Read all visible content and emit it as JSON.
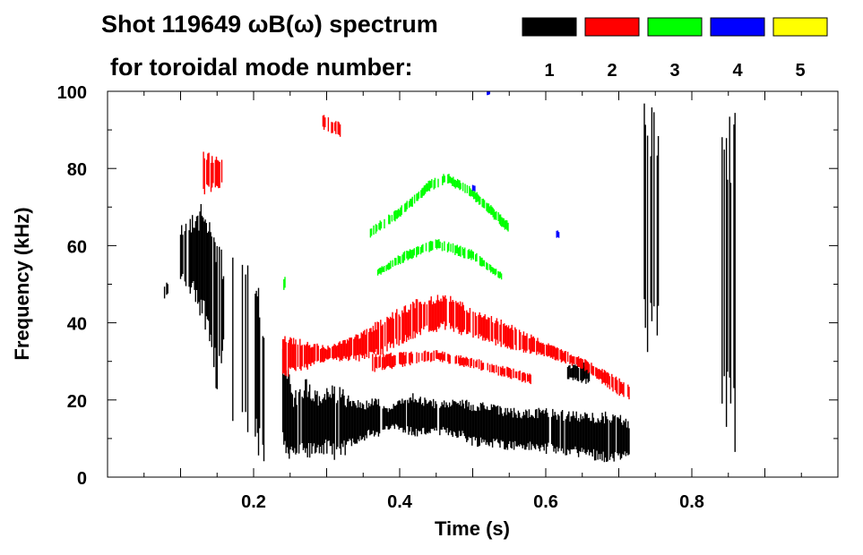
{
  "chart_data": {
    "type": "heatmap",
    "title": "Shot 119649 ωB(ω) spectrum",
    "subtitle": "for toroidal mode number:",
    "xlabel": "Time (s)",
    "ylabel": "Frequency (kHz)",
    "xlim": [
      0,
      1.0
    ],
    "ylim": [
      0,
      100
    ],
    "xticks": [
      0.2,
      0.4,
      0.6,
      0.8
    ],
    "xtick_labels": [
      "0.2",
      "0.4",
      "0.6",
      "0.8"
    ],
    "yticks": [
      0,
      20,
      40,
      60,
      80,
      100
    ],
    "ytick_labels": [
      "0",
      "20",
      "40",
      "60",
      "80",
      "100"
    ],
    "legend": [
      {
        "mode": "1",
        "color": "#000000"
      },
      {
        "mode": "2",
        "color": "#ff0000"
      },
      {
        "mode": "3",
        "color": "#00ff00"
      },
      {
        "mode": "4",
        "color": "#0000ff"
      },
      {
        "mode": "5",
        "color": "#ffff00"
      }
    ],
    "features": [
      {
        "mode": 1,
        "density": 0.9,
        "points": [
          [
            0.078,
            46,
            50
          ],
          [
            0.083,
            47,
            51
          ]
        ]
      },
      {
        "mode": 1,
        "density": 0.8,
        "points": [
          [
            0.1,
            50,
            66
          ],
          [
            0.12,
            45,
            70
          ],
          [
            0.14,
            35,
            72
          ],
          [
            0.15,
            20,
            65
          ],
          [
            0.16,
            30,
            55
          ]
        ]
      },
      {
        "mode": 1,
        "density": 0.35,
        "points": [
          [
            0.17,
            15,
            60
          ],
          [
            0.2,
            5,
            55
          ],
          [
            0.215,
            3,
            45
          ]
        ]
      },
      {
        "mode": 1,
        "density": 0.95,
        "points": [
          [
            0.24,
            4,
            35
          ],
          [
            0.255,
            5,
            22
          ],
          [
            0.27,
            3,
            26
          ],
          [
            0.29,
            6,
            22
          ],
          [
            0.3,
            5,
            24
          ],
          [
            0.32,
            4,
            24
          ],
          [
            0.335,
            8,
            20
          ],
          [
            0.36,
            10,
            20
          ],
          [
            0.37,
            9,
            22
          ],
          [
            0.38,
            12,
            18
          ],
          [
            0.4,
            12,
            20
          ],
          [
            0.42,
            10,
            22
          ],
          [
            0.45,
            11,
            20
          ],
          [
            0.48,
            10,
            21
          ],
          [
            0.5,
            8,
            20
          ],
          [
            0.55,
            7,
            18
          ],
          [
            0.6,
            6,
            18
          ],
          [
            0.65,
            5,
            17
          ],
          [
            0.7,
            3,
            17
          ],
          [
            0.715,
            5,
            15
          ]
        ]
      },
      {
        "mode": 1,
        "density": 0.9,
        "points": [
          [
            0.63,
            25,
            29
          ],
          [
            0.66,
            24,
            30
          ]
        ]
      },
      {
        "mode": 1,
        "density": 0.5,
        "points": [
          [
            0.735,
            30,
            100
          ],
          [
            0.76,
            30,
            90
          ]
        ]
      },
      {
        "mode": 1,
        "density": 0.6,
        "points": [
          [
            0.84,
            10,
            100
          ],
          [
            0.86,
            5,
            95
          ]
        ]
      },
      {
        "mode": 2,
        "density": 0.6,
        "points": [
          [
            0.13,
            73,
            85
          ],
          [
            0.16,
            75,
            82
          ]
        ]
      },
      {
        "mode": 2,
        "density": 0.8,
        "points": [
          [
            0.295,
            90,
            94
          ],
          [
            0.32,
            88,
            92
          ]
        ]
      },
      {
        "mode": 2,
        "density": 0.85,
        "points": [
          [
            0.24,
            25,
            37
          ],
          [
            0.3,
            30,
            34
          ],
          [
            0.35,
            30,
            38
          ],
          [
            0.38,
            32,
            42
          ],
          [
            0.42,
            36,
            46
          ],
          [
            0.46,
            38,
            48
          ],
          [
            0.5,
            36,
            44
          ],
          [
            0.55,
            33,
            40
          ],
          [
            0.6,
            31,
            35
          ],
          [
            0.65,
            28,
            31
          ],
          [
            0.7,
            21,
            26
          ],
          [
            0.715,
            20,
            24
          ]
        ]
      },
      {
        "mode": 2,
        "density": 0.7,
        "points": [
          [
            0.36,
            27,
            32
          ],
          [
            0.45,
            30,
            33
          ],
          [
            0.5,
            28,
            31
          ],
          [
            0.58,
            24,
            27
          ]
        ]
      },
      {
        "mode": 3,
        "density": 0.75,
        "points": [
          [
            0.36,
            62,
            65
          ],
          [
            0.4,
            67,
            70
          ],
          [
            0.44,
            74,
            77
          ],
          [
            0.465,
            76,
            79
          ],
          [
            0.5,
            72,
            75
          ],
          [
            0.55,
            63,
            66
          ]
        ]
      },
      {
        "mode": 3,
        "density": 0.75,
        "points": [
          [
            0.37,
            52,
            54
          ],
          [
            0.41,
            56,
            59
          ],
          [
            0.45,
            59,
            62
          ],
          [
            0.5,
            56,
            59
          ],
          [
            0.54,
            51,
            53
          ]
        ]
      },
      {
        "mode": 3,
        "density": 0.6,
        "points": [
          [
            0.24,
            48,
            52
          ],
          [
            0.245,
            49,
            52
          ]
        ]
      },
      {
        "mode": 4,
        "density": 0.9,
        "points": [
          [
            0.5,
            74,
            76
          ],
          [
            0.503,
            74,
            76
          ]
        ]
      },
      {
        "mode": 4,
        "density": 0.9,
        "points": [
          [
            0.615,
            62,
            64
          ],
          [
            0.618,
            62,
            64
          ]
        ]
      },
      {
        "mode": 4,
        "density": 0.9,
        "points": [
          [
            0.52,
            99,
            100
          ],
          [
            0.523,
            99,
            100
          ]
        ]
      }
    ]
  }
}
